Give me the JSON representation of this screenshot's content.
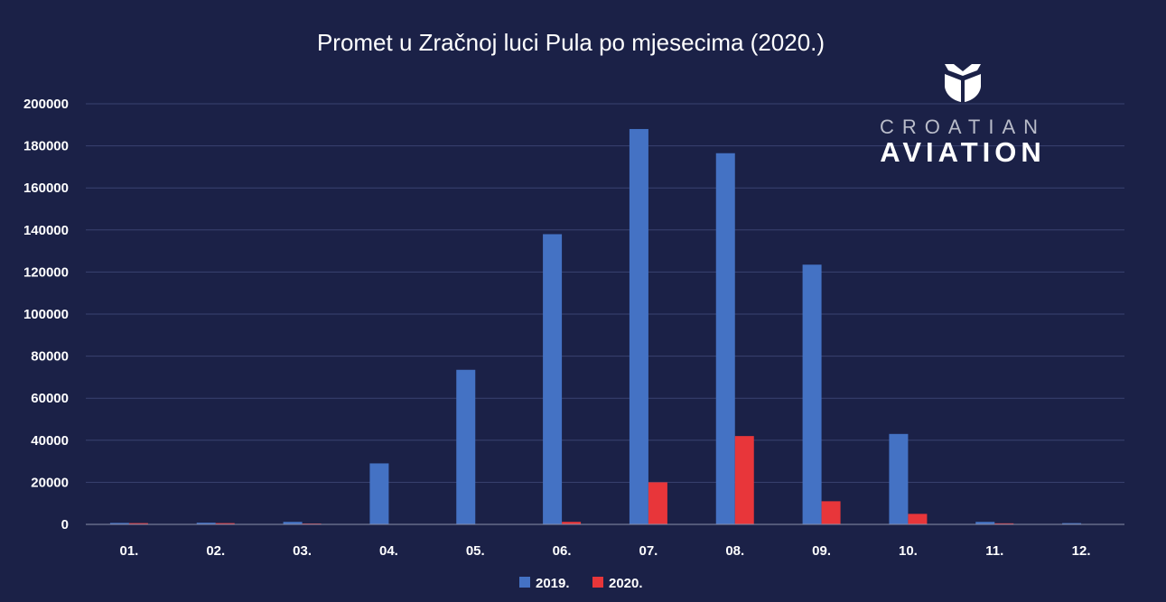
{
  "colors": {
    "background": "#1b2147",
    "series_2019": "#4472c4",
    "series_2020": "#e8363a",
    "grid": "#3a4270",
    "axis": "#8a8fa8",
    "text": "#ffffff"
  },
  "logo": {
    "icon": "shield-plane-icon",
    "line1": "CROATIAN",
    "line2": "AVIATION"
  },
  "chart_data": {
    "type": "bar",
    "title": "Promet u Zračnoj luci Pula po mjesecima (2020.)",
    "xlabel": "",
    "ylabel": "",
    "categories": [
      "01.",
      "02.",
      "03.",
      "04.",
      "05.",
      "06.",
      "07.",
      "08.",
      "09.",
      "10.",
      "11.",
      "12."
    ],
    "series": [
      {
        "name": "2019.",
        "values": [
          700,
          800,
          1200,
          29000,
          73500,
          138000,
          188000,
          176500,
          123500,
          43000,
          1200,
          600
        ]
      },
      {
        "name": "2020.",
        "values": [
          600,
          600,
          400,
          0,
          0,
          1200,
          20000,
          42000,
          11000,
          5000,
          500,
          0
        ]
      }
    ],
    "ylim": [
      0,
      200000
    ],
    "yticks": [
      0,
      20000,
      40000,
      60000,
      80000,
      100000,
      120000,
      140000,
      160000,
      180000,
      200000
    ],
    "ytick_labels": [
      "0",
      "20000",
      "40000",
      "60000",
      "80000",
      "100000",
      "120000",
      "140000",
      "160000",
      "180000",
      "200000"
    ],
    "grid": true,
    "legend_position": "bottom-center"
  }
}
